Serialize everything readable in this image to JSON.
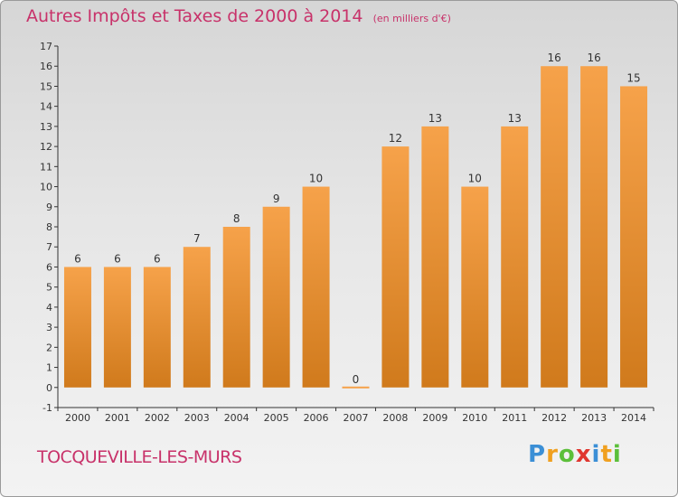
{
  "title": "Autres Impôts et Taxes de 2000 à 2014",
  "unit": "(en milliers d'€)",
  "commune": "TOCQUEVILLE-LES-MURS",
  "logo": {
    "letters": [
      "P",
      "r",
      "o",
      "x",
      "i",
      "t",
      "i"
    ],
    "colors": [
      "#3b8fd6",
      "#f0a020",
      "#5cbf3a",
      "#e0362f",
      "#3b8fd6",
      "#f0a020",
      "#5cbf3a"
    ]
  },
  "colors": {
    "accent": "#c8326a",
    "bar_top": "#f6a24a",
    "bar_bottom": "#d07a1c"
  },
  "chart_data": {
    "type": "bar",
    "title": "Autres Impôts et Taxes de 2000 à 2014",
    "subtitle": "(en milliers d'€)",
    "xlabel": "",
    "ylabel": "",
    "categories": [
      "2000",
      "2001",
      "2002",
      "2003",
      "2004",
      "2005",
      "2006",
      "2007",
      "2008",
      "2009",
      "2010",
      "2011",
      "2012",
      "2013",
      "2014"
    ],
    "values": [
      6,
      6,
      6,
      7,
      8,
      9,
      10,
      0,
      12,
      13,
      10,
      13,
      16,
      16,
      15
    ],
    "data_labels": [
      "6",
      "6",
      "6",
      "7",
      "8",
      "9",
      "10",
      "0",
      "12",
      "13",
      "10",
      "13",
      "16",
      "16",
      "15"
    ],
    "ylim": [
      -1,
      17
    ],
    "yticks": [
      "-1",
      "0",
      "1",
      "2",
      "3",
      "4",
      "5",
      "6",
      "7",
      "8",
      "9",
      "10",
      "11",
      "12",
      "13",
      "14",
      "15",
      "16",
      "17"
    ],
    "grid": false,
    "legend": "none"
  }
}
